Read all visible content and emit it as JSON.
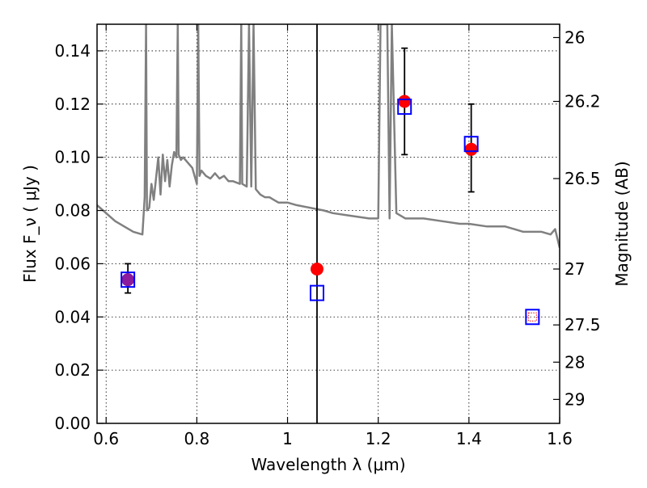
{
  "chart_data": {
    "type": "scatter",
    "xlabel": "Wavelength  λ (μm)",
    "ylabel": "Flux  F_ν  ( μJy )",
    "ylabel_right": "Magnitude (AB)",
    "xlim": [
      0.58,
      1.6
    ],
    "ylim": [
      0.0,
      0.15
    ],
    "grid": true,
    "x_ticks": [
      0.6,
      0.8,
      1.0,
      1.2,
      1.4,
      1.6
    ],
    "x_tick_labels": [
      "0.6",
      "0.8",
      "1",
      "1.2",
      "1.4",
      "1.6"
    ],
    "y_ticks": [
      0.0,
      0.02,
      0.04,
      0.06,
      0.08,
      0.1,
      0.12,
      0.14
    ],
    "y_tick_labels": [
      "0.00",
      "0.02",
      "0.04",
      "0.06",
      "0.08",
      "0.10",
      "0.12",
      "0.14"
    ],
    "right_ticks": [
      {
        "label": "26",
        "flux": 0.145
      },
      {
        "label": "26.2",
        "flux": 0.121
      },
      {
        "label": "26.5",
        "flux": 0.092
      },
      {
        "label": "27",
        "flux": 0.058
      },
      {
        "label": "27.5",
        "flux": 0.037
      },
      {
        "label": "28",
        "flux": 0.023
      },
      {
        "label": "29",
        "flux": 0.009
      }
    ],
    "vertical_line_x": 1.065,
    "model_spectrum": {
      "color": "#808080",
      "points": [
        [
          0.58,
          0.082
        ],
        [
          0.6,
          0.079
        ],
        [
          0.62,
          0.076
        ],
        [
          0.64,
          0.074
        ],
        [
          0.66,
          0.072
        ],
        [
          0.68,
          0.071
        ],
        [
          0.685,
          0.085
        ],
        [
          0.688,
          0.15
        ],
        [
          0.69,
          0.08
        ],
        [
          0.695,
          0.081
        ],
        [
          0.7,
          0.09
        ],
        [
          0.705,
          0.084
        ],
        [
          0.71,
          0.092
        ],
        [
          0.715,
          0.1
        ],
        [
          0.72,
          0.086
        ],
        [
          0.725,
          0.101
        ],
        [
          0.73,
          0.091
        ],
        [
          0.735,
          0.099
        ],
        [
          0.74,
          0.089
        ],
        [
          0.745,
          0.097
        ],
        [
          0.75,
          0.102
        ],
        [
          0.755,
          0.1
        ],
        [
          0.758,
          0.15
        ],
        [
          0.76,
          0.101
        ],
        [
          0.765,
          0.099
        ],
        [
          0.77,
          0.1
        ],
        [
          0.78,
          0.098
        ],
        [
          0.79,
          0.096
        ],
        [
          0.8,
          0.09
        ],
        [
          0.803,
          0.15
        ],
        [
          0.806,
          0.093
        ],
        [
          0.81,
          0.095
        ],
        [
          0.82,
          0.093
        ],
        [
          0.83,
          0.092
        ],
        [
          0.84,
          0.094
        ],
        [
          0.85,
          0.092
        ],
        [
          0.86,
          0.093
        ],
        [
          0.87,
          0.091
        ],
        [
          0.88,
          0.091
        ],
        [
          0.895,
          0.09
        ],
        [
          0.898,
          0.15
        ],
        [
          0.9,
          0.09
        ],
        [
          0.91,
          0.089
        ],
        [
          0.915,
          0.15
        ],
        [
          0.92,
          0.089
        ],
        [
          0.925,
          0.15
        ],
        [
          0.93,
          0.088
        ],
        [
          0.94,
          0.086
        ],
        [
          0.95,
          0.085
        ],
        [
          0.96,
          0.085
        ],
        [
          0.97,
          0.084
        ],
        [
          0.98,
          0.083
        ],
        [
          0.99,
          0.083
        ],
        [
          1.0,
          0.083
        ],
        [
          1.02,
          0.082
        ],
        [
          1.05,
          0.081
        ],
        [
          1.08,
          0.08
        ],
        [
          1.1,
          0.079
        ],
        [
          1.14,
          0.078
        ],
        [
          1.18,
          0.077
        ],
        [
          1.2,
          0.077
        ],
        [
          1.205,
          0.15
        ],
        [
          1.22,
          0.15
        ],
        [
          1.225,
          0.077
        ],
        [
          1.23,
          0.15
        ],
        [
          1.24,
          0.079
        ],
        [
          1.26,
          0.077
        ],
        [
          1.3,
          0.077
        ],
        [
          1.34,
          0.076
        ],
        [
          1.38,
          0.075
        ],
        [
          1.4,
          0.075
        ],
        [
          1.44,
          0.074
        ],
        [
          1.48,
          0.074
        ],
        [
          1.5,
          0.073
        ],
        [
          1.52,
          0.072
        ],
        [
          1.56,
          0.072
        ],
        [
          1.58,
          0.071
        ],
        [
          1.59,
          0.073
        ],
        [
          1.6,
          0.066
        ]
      ]
    },
    "series": [
      {
        "marker": "square-open",
        "color": "#0000ff",
        "points": [
          [
            0.648,
            0.054
          ],
          [
            1.065,
            0.049
          ],
          [
            1.258,
            0.119
          ],
          [
            1.405,
            0.105
          ],
          [
            1.54,
            0.04
          ]
        ]
      },
      {
        "marker": "circle-filled",
        "color": "#ff0000",
        "points": [
          [
            0.648,
            0.054
          ],
          [
            1.065,
            0.058
          ],
          [
            1.258,
            0.121
          ],
          [
            1.405,
            0.103
          ]
        ],
        "errors": [
          [
            0.648,
            0.049,
            0.06
          ],
          [
            1.258,
            0.101,
            0.141
          ],
          [
            1.405,
            0.087,
            0.12
          ]
        ]
      },
      {
        "marker": "square-open-small",
        "color": "#ff0000",
        "points": [
          [
            1.54,
            0.04
          ]
        ]
      }
    ],
    "overlap_color": "#8b1a9c"
  }
}
